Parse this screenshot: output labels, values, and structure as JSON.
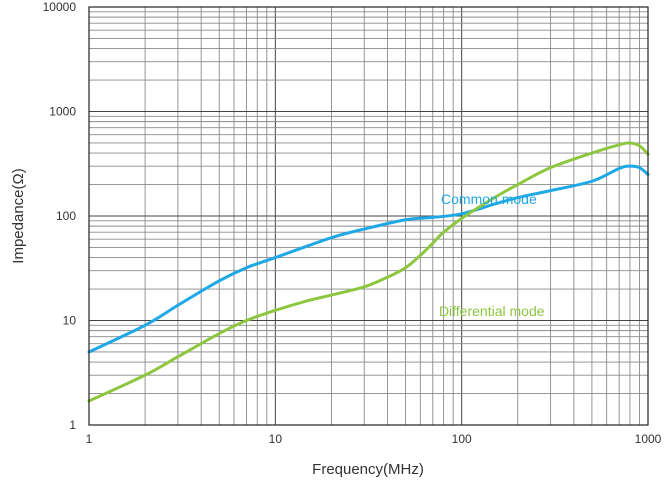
{
  "chart_data": {
    "type": "line",
    "title": "",
    "xlabel": "Frequency(MHz)",
    "ylabel": "Impedance(Ω)",
    "x_scale": "log",
    "y_scale": "log",
    "xlim": [
      1,
      1000
    ],
    "ylim": [
      1,
      10000
    ],
    "grid": true,
    "x_ticks": [
      1,
      10,
      100,
      1000
    ],
    "x_tick_labels": [
      "1",
      "10",
      "100",
      "1000"
    ],
    "y_ticks": [
      1,
      10,
      100,
      1000,
      10000
    ],
    "y_tick_labels": [
      "1",
      "10",
      "100",
      "1000",
      "10000"
    ],
    "series": [
      {
        "name": "Common mode",
        "color": "#1ea8e6",
        "x": [
          1,
          2,
          3,
          5,
          7,
          10,
          20,
          30,
          50,
          70,
          100,
          150,
          200,
          300,
          500,
          700,
          800,
          900,
          1000
        ],
        "y": [
          5,
          9,
          14,
          24,
          32,
          40,
          62,
          75,
          92,
          97,
          105,
          130,
          150,
          175,
          215,
          285,
          300,
          290,
          250
        ]
      },
      {
        "name": "Differential mode",
        "color": "#8dc63f",
        "x": [
          1,
          2,
          3,
          5,
          7,
          10,
          15,
          20,
          30,
          40,
          50,
          60,
          70,
          80,
          100,
          150,
          200,
          300,
          500,
          700,
          800,
          900,
          1000
        ],
        "y": [
          1.7,
          3,
          4.5,
          7.5,
          10,
          12.5,
          15.5,
          17.5,
          21,
          26,
          32,
          42,
          55,
          70,
          95,
          150,
          200,
          290,
          400,
          480,
          500,
          470,
          390
        ]
      }
    ],
    "annotations": [
      {
        "text": "Common mode",
        "x": 140,
        "y": 130
      },
      {
        "text": "Differential mode",
        "x": 145,
        "y": 11
      }
    ]
  }
}
